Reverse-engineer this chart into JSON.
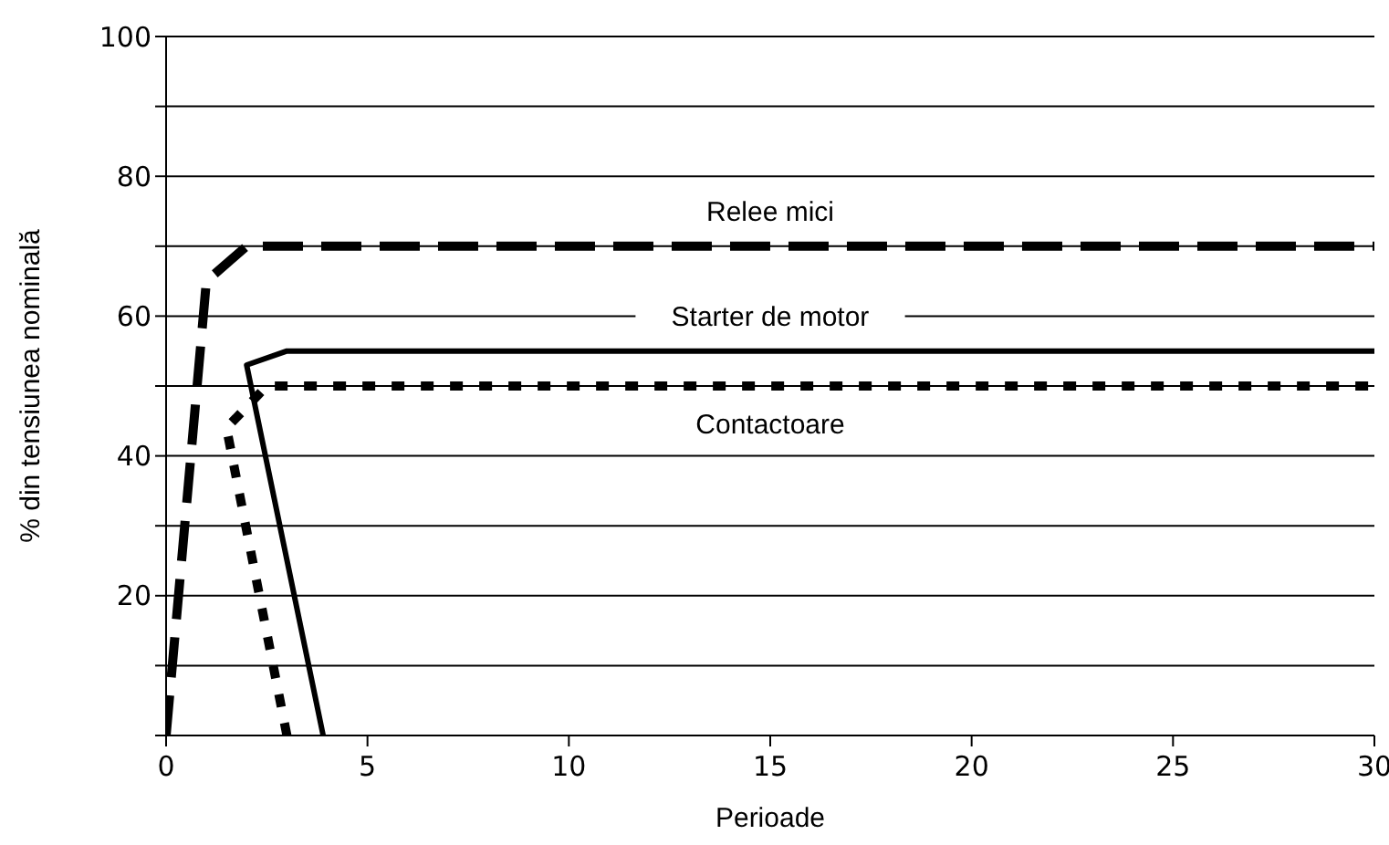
{
  "chart_data": {
    "type": "line",
    "xlabel": "Perioade",
    "ylabel": "% din tensiunea nominală",
    "xlim": [
      0,
      30
    ],
    "xticks": [
      0,
      5,
      10,
      15,
      20,
      25,
      30
    ],
    "ylim": [
      0,
      100
    ],
    "yticks": [
      {
        "value": 0,
        "label": null
      },
      {
        "value": 10,
        "label": null
      },
      20,
      {
        "value": 30,
        "label": null
      },
      40,
      {
        "value": 50,
        "label": null
      },
      60,
      {
        "value": 70,
        "label": null
      },
      80,
      {
        "value": 90,
        "label": null
      },
      100
    ],
    "grid": "y",
    "legend": false,
    "marker": "none",
    "series": [
      {
        "name": "Relee mici",
        "color": "#000000",
        "line_style": "dashed",
        "x": [
          0,
          1,
          2,
          30
        ],
        "values": [
          0,
          65,
          70,
          70
        ]
      },
      {
        "name": "Starter de motor",
        "color": "#000000",
        "line_style": "solid",
        "x": [
          3.9,
          2,
          3,
          30
        ],
        "values": [
          0,
          53,
          55,
          55
        ]
      },
      {
        "name": "Contactoare",
        "color": "#000000",
        "line_style": "dotted",
        "x": [
          3,
          1.5,
          2.5,
          30
        ],
        "values": [
          0,
          44,
          50,
          50
        ]
      }
    ]
  }
}
